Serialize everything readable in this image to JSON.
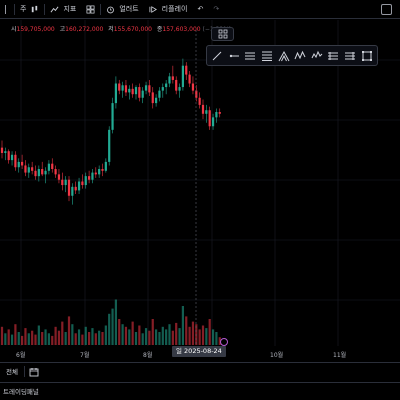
{
  "toolbar": {
    "interval_label": "주",
    "indicators_label": "지표",
    "alert_label": "얼러트",
    "replay_label": "리플레이"
  },
  "legend": {
    "open_label": "시",
    "open_value": "159,705,000",
    "high_label": "고",
    "high_value": "160,272,000",
    "low_label": "저",
    "low_value": "155,670,000",
    "close_label": "종",
    "close_value": "157,603,000",
    "change_value": "(−1.32%)"
  },
  "x_axis": {
    "labels": [
      "6월",
      "7월",
      "8월",
      "10월",
      "11월"
    ],
    "cursor_label": "일 2025-08-24"
  },
  "bottom": {
    "range_label": "전체",
    "panel_label": "트레이딩패널"
  },
  "colors": {
    "up": "#22ab94",
    "down": "#f23645",
    "bg": "#000000",
    "grid": "#1a1d26"
  },
  "chart_data": {
    "type": "candlestick",
    "up_color": "#22ab94",
    "down_color": "#f23645",
    "candles": [
      {
        "o": 50,
        "h": 54,
        "l": 44,
        "c": 47
      },
      {
        "o": 47,
        "h": 50,
        "l": 43,
        "c": 48
      },
      {
        "o": 48,
        "h": 49,
        "l": 41,
        "c": 43
      },
      {
        "o": 43,
        "h": 48,
        "l": 40,
        "c": 46
      },
      {
        "o": 46,
        "h": 48,
        "l": 37,
        "c": 39
      },
      {
        "o": 39,
        "h": 44,
        "l": 36,
        "c": 42
      },
      {
        "o": 42,
        "h": 46,
        "l": 38,
        "c": 40
      },
      {
        "o": 40,
        "h": 43,
        "l": 34,
        "c": 36
      },
      {
        "o": 36,
        "h": 41,
        "l": 33,
        "c": 39
      },
      {
        "o": 39,
        "h": 42,
        "l": 35,
        "c": 37
      },
      {
        "o": 37,
        "h": 40,
        "l": 32,
        "c": 34
      },
      {
        "o": 34,
        "h": 40,
        "l": 31,
        "c": 38
      },
      {
        "o": 38,
        "h": 42,
        "l": 34,
        "c": 35
      },
      {
        "o": 35,
        "h": 39,
        "l": 30,
        "c": 37
      },
      {
        "o": 37,
        "h": 43,
        "l": 35,
        "c": 41
      },
      {
        "o": 41,
        "h": 44,
        "l": 36,
        "c": 38
      },
      {
        "o": 38,
        "h": 40,
        "l": 33,
        "c": 35
      },
      {
        "o": 35,
        "h": 38,
        "l": 30,
        "c": 32
      },
      {
        "o": 32,
        "h": 36,
        "l": 26,
        "c": 29
      },
      {
        "o": 29,
        "h": 34,
        "l": 25,
        "c": 32
      },
      {
        "o": 32,
        "h": 34,
        "l": 20,
        "c": 23
      },
      {
        "o": 23,
        "h": 30,
        "l": 18,
        "c": 28
      },
      {
        "o": 28,
        "h": 31,
        "l": 24,
        "c": 26
      },
      {
        "o": 26,
        "h": 33,
        "l": 24,
        "c": 31
      },
      {
        "o": 31,
        "h": 35,
        "l": 27,
        "c": 29
      },
      {
        "o": 29,
        "h": 36,
        "l": 27,
        "c": 34
      },
      {
        "o": 34,
        "h": 37,
        "l": 30,
        "c": 32
      },
      {
        "o": 32,
        "h": 38,
        "l": 30,
        "c": 36
      },
      {
        "o": 36,
        "h": 39,
        "l": 33,
        "c": 35
      },
      {
        "o": 35,
        "h": 40,
        "l": 33,
        "c": 38
      },
      {
        "o": 38,
        "h": 41,
        "l": 34,
        "c": 37
      },
      {
        "o": 37,
        "h": 44,
        "l": 36,
        "c": 42
      },
      {
        "o": 42,
        "h": 62,
        "l": 40,
        "c": 60
      },
      {
        "o": 60,
        "h": 78,
        "l": 58,
        "c": 75
      },
      {
        "o": 75,
        "h": 90,
        "l": 72,
        "c": 86
      },
      {
        "o": 86,
        "h": 88,
        "l": 80,
        "c": 82
      },
      {
        "o": 82,
        "h": 87,
        "l": 78,
        "c": 85
      },
      {
        "o": 85,
        "h": 88,
        "l": 79,
        "c": 81
      },
      {
        "o": 81,
        "h": 85,
        "l": 77,
        "c": 83
      },
      {
        "o": 83,
        "h": 86,
        "l": 78,
        "c": 80
      },
      {
        "o": 80,
        "h": 85,
        "l": 77,
        "c": 84
      },
      {
        "o": 84,
        "h": 86,
        "l": 76,
        "c": 78
      },
      {
        "o": 78,
        "h": 84,
        "l": 75,
        "c": 82
      },
      {
        "o": 82,
        "h": 87,
        "l": 80,
        "c": 85
      },
      {
        "o": 85,
        "h": 88,
        "l": 79,
        "c": 81
      },
      {
        "o": 81,
        "h": 84,
        "l": 72,
        "c": 75
      },
      {
        "o": 75,
        "h": 80,
        "l": 73,
        "c": 78
      },
      {
        "o": 78,
        "h": 84,
        "l": 76,
        "c": 82
      },
      {
        "o": 82,
        "h": 86,
        "l": 78,
        "c": 84
      },
      {
        "o": 84,
        "h": 88,
        "l": 80,
        "c": 86
      },
      {
        "o": 86,
        "h": 92,
        "l": 84,
        "c": 90
      },
      {
        "o": 90,
        "h": 96,
        "l": 86,
        "c": 88
      },
      {
        "o": 88,
        "h": 90,
        "l": 80,
        "c": 82
      },
      {
        "o": 82,
        "h": 86,
        "l": 78,
        "c": 84
      },
      {
        "o": 84,
        "h": 100,
        "l": 82,
        "c": 96
      },
      {
        "o": 96,
        "h": 98,
        "l": 88,
        "c": 91
      },
      {
        "o": 91,
        "h": 93,
        "l": 84,
        "c": 86
      },
      {
        "o": 86,
        "h": 90,
        "l": 80,
        "c": 82
      },
      {
        "o": 82,
        "h": 85,
        "l": 76,
        "c": 78
      },
      {
        "o": 78,
        "h": 81,
        "l": 72,
        "c": 74
      },
      {
        "o": 74,
        "h": 77,
        "l": 66,
        "c": 69
      },
      {
        "o": 69,
        "h": 74,
        "l": 64,
        "c": 71
      },
      {
        "o": 71,
        "h": 73,
        "l": 60,
        "c": 62
      },
      {
        "o": 62,
        "h": 69,
        "l": 60,
        "c": 67
      },
      {
        "o": 67,
        "h": 72,
        "l": 64,
        "c": 70
      },
      {
        "o": 70,
        "h": 72,
        "l": 67,
        "c": 69
      }
    ],
    "volume": [
      14,
      9,
      12,
      8,
      16,
      10,
      7,
      13,
      9,
      11,
      8,
      15,
      10,
      12,
      9,
      7,
      14,
      11,
      18,
      10,
      22,
      16,
      9,
      12,
      8,
      14,
      10,
      13,
      9,
      11,
      10,
      15,
      24,
      28,
      35,
      20,
      16,
      14,
      12,
      18,
      10,
      15,
      9,
      13,
      11,
      20,
      12,
      10,
      14,
      12,
      16,
      11,
      17,
      13,
      30,
      22,
      14,
      18,
      16,
      12,
      15,
      13,
      20,
      12,
      10,
      6
    ]
  }
}
